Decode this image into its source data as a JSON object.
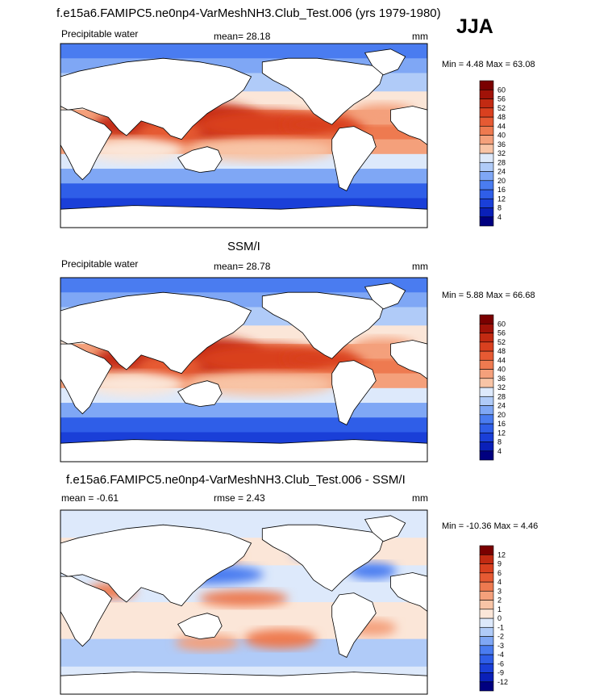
{
  "header": {
    "title": "f.e15a6.FAMIPC5.ne0np4-VarMeshNH3.Club_Test.006 (yrs 1979-1980)",
    "season": "JJA"
  },
  "panels": [
    {
      "left_label": "Precipitable water",
      "center_label": "mean=  28.18",
      "right_label": "mm",
      "minmax": "Min =   4.48 Max =  63.08"
    },
    {
      "title": "SSM/I",
      "left_label": "Precipitable water",
      "center_label": "mean=  28.78",
      "right_label": "mm",
      "minmax": "Min =   5.88 Max =  66.68"
    },
    {
      "title": "f.e15a6.FAMIPC5.ne0np4-VarMeshNH3.Club_Test.006 - SSM/I",
      "left_label": "mean =  -0.61",
      "center_label": "rmse =   2.43",
      "right_label": "mm",
      "minmax": "Min = -10.36 Max =   4.46"
    }
  ],
  "colors": {
    "abs_scale": [
      "#000080",
      "#0a20b8",
      "#1a3fd8",
      "#2f5ee8",
      "#4a7cf0",
      "#7fa7f5",
      "#b0cbf8",
      "#dde9fb",
      "#fbe6d8",
      "#f8c4a6",
      "#f4a07b",
      "#ee7a50",
      "#e65a33",
      "#d9401f",
      "#c22a12",
      "#a01208",
      "#7a0000"
    ],
    "diff_scale": [
      "#000080",
      "#0a20b8",
      "#1a3fd8",
      "#2f5ee8",
      "#4a7cf0",
      "#7fa7f5",
      "#b0cbf8",
      "#dde9fb",
      "#fbe6d8",
      "#f8c4a6",
      "#f4a07b",
      "#ee7a50",
      "#e65a33",
      "#d9401f",
      "#c22a12",
      "#7a0000"
    ],
    "land": "#ffffff",
    "coast": "#000000"
  },
  "chart_data": [
    {
      "type": "heatmap",
      "title": "Precipitable water",
      "subtitle": "f.e15a6.FAMIPC5.ne0np4-VarMeshNH3.Club_Test.006 (yrs 1979-1980) JJA",
      "units": "mm",
      "mean": 28.18,
      "min": 4.48,
      "max": 63.08,
      "colorbar_levels": [
        4,
        8,
        12,
        16,
        20,
        24,
        28,
        32,
        36,
        40,
        44,
        48,
        52,
        56,
        60
      ]
    },
    {
      "type": "heatmap",
      "title": "SSM/I Precipitable water",
      "units": "mm",
      "mean": 28.78,
      "min": 5.88,
      "max": 66.68,
      "colorbar_levels": [
        4,
        8,
        12,
        16,
        20,
        24,
        28,
        32,
        36,
        40,
        44,
        48,
        52,
        56,
        60
      ]
    },
    {
      "type": "heatmap",
      "title": "f.e15a6.FAMIPC5.ne0np4-VarMeshNH3.Club_Test.006 - SSM/I",
      "units": "mm",
      "mean": -0.61,
      "rmse": 2.43,
      "min": -10.36,
      "max": 4.46,
      "colorbar_levels": [
        -12,
        -9,
        -6,
        -4,
        -3,
        -2,
        -1,
        0,
        1,
        2,
        3,
        4,
        6,
        9,
        12
      ]
    }
  ]
}
